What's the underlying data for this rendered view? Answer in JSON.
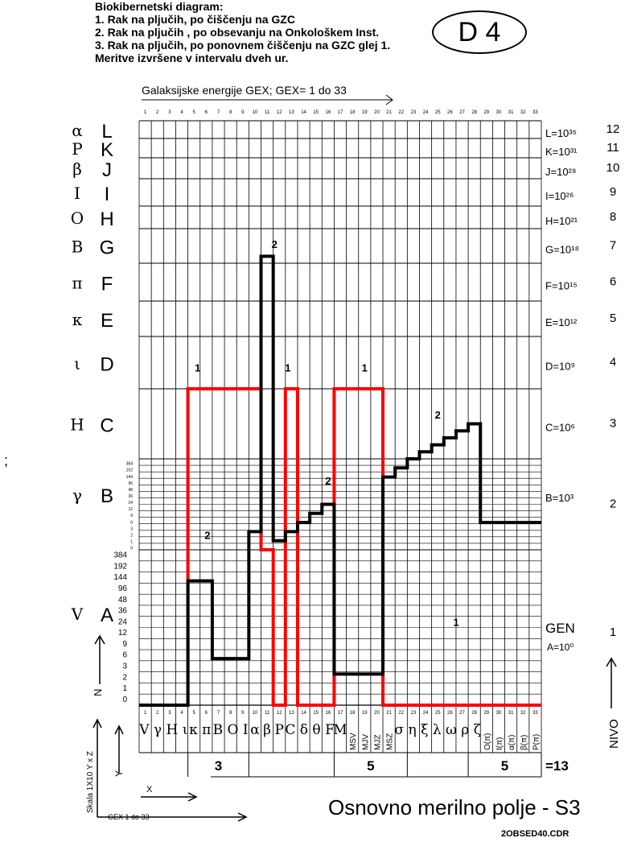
{
  "header": {
    "lines": [
      "Biokibernetski diagram:",
      "1. Rak na pljučih, po čiščenju na GZC",
      "2. Rak na pljučih , po obsevanju na Onkološkem Inst.",
      "3. Rak na pljučih, po ponovnem čiščenju na GZC glej 1.",
      "Meritve izvršene v intervalu dveh ur."
    ],
    "badge": "D 4"
  },
  "chart_data": {
    "type": "line",
    "title": "Galaksijske energije GEX;    GEX= 1 do 33",
    "x_ticks": [
      "1",
      "2",
      "3",
      "4",
      "5",
      "6",
      "7",
      "8",
      "9",
      "10",
      "11",
      "12",
      "13",
      "14",
      "15",
      "16",
      "17",
      "18",
      "19",
      "20",
      "21",
      "22",
      "23",
      "24",
      "25",
      "26",
      "27",
      "28",
      "29",
      "30",
      "31",
      "32",
      "33"
    ],
    "levels": [
      {
        "nivo": 1,
        "letter": "A",
        "greek": "V",
        "exp": "GEN"
      },
      {
        "nivo": 2,
        "letter": "B",
        "greek": "γ",
        "exp": "B=10³"
      },
      {
        "nivo": 3,
        "letter": "C",
        "greek": "H",
        "exp": "C=10⁶"
      },
      {
        "nivo": 4,
        "letter": "D",
        "greek": "ι",
        "exp": "D=10⁹"
      },
      {
        "nivo": 5,
        "letter": "E",
        "greek": "κ",
        "exp": "E=10¹²"
      },
      {
        "nivo": 6,
        "letter": "F",
        "greek": "π",
        "exp": "F=10¹⁵"
      },
      {
        "nivo": 7,
        "letter": "G",
        "greek": "B",
        "exp": "G=10¹⁸"
      },
      {
        "nivo": 8,
        "letter": "H",
        "greek": "O",
        "exp": "H=10²¹"
      },
      {
        "nivo": 9,
        "letter": "I",
        "greek": "I",
        "exp": "I=10²⁶"
      },
      {
        "nivo": 10,
        "letter": "J",
        "greek": "β",
        "exp": "J=10²⁸"
      },
      {
        "nivo": 11,
        "letter": "K",
        "greek": "P",
        "exp": "K=10³¹"
      },
      {
        "nivo": 12,
        "letter": "L",
        "greek": "α",
        "exp": "L=10³⁵"
      }
    ],
    "gen_extra": "A=10⁰",
    "sub_scale": [
      "0",
      "1",
      "2",
      "3",
      "6",
      "9",
      "12",
      "24",
      "36",
      "48",
      "96",
      "144",
      "192",
      "384"
    ],
    "series": [
      {
        "label": "1",
        "color": "#ff0000",
        "levels": [
          1,
          1,
          1,
          1,
          4,
          4,
          4,
          4,
          4,
          4,
          2,
          1,
          4,
          1,
          1,
          1,
          4,
          4,
          4,
          4,
          1,
          1,
          1,
          1,
          1,
          1,
          1,
          1,
          1,
          1,
          1,
          1,
          1
        ]
      },
      {
        "label": "2",
        "color": "#000000",
        "levels": [
          1,
          1,
          1,
          1,
          1.8,
          1.8,
          1.3,
          1.3,
          1.3,
          2.2,
          7.2,
          2.1,
          2.2,
          2.3,
          2.4,
          2.5,
          1.2,
          1.2,
          1.2,
          1.2,
          2.8,
          2.9,
          3.0,
          3.1,
          3.2,
          3.3,
          3.4,
          3.5,
          2.3,
          2.3,
          2.3,
          2.3,
          2.3
        ]
      }
    ],
    "series_labels": [
      {
        "text": "1",
        "x": 4.8,
        "level": 4.3
      },
      {
        "text": "1",
        "x": 12.2,
        "level": 4.3
      },
      {
        "text": "1",
        "x": 18.5,
        "level": 4.3
      },
      {
        "text": "1",
        "x": 26.0,
        "level": 1.5
      },
      {
        "text": "2",
        "x": 5.6,
        "level": 2.1
      },
      {
        "text": "2",
        "x": 11.1,
        "level": 7.4
      },
      {
        "text": "2",
        "x": 15.5,
        "level": 2.7
      },
      {
        "text": "2",
        "x": 24.5,
        "level": 3.55
      }
    ],
    "cat_labels": [
      {
        "from": 1,
        "to": 4,
        "text": "V γ H ι"
      },
      {
        "from": 5,
        "to": 6,
        "text": "κ π"
      },
      {
        "from": 7,
        "to": 9,
        "text": "B O I"
      },
      {
        "from": 10,
        "to": 10,
        "text": "α"
      },
      {
        "from": 11,
        "to": 11,
        "text": "β"
      },
      {
        "from": 12,
        "to": 12,
        "text": "P"
      },
      {
        "from": 13,
        "to": 16,
        "text": "C δ θ F"
      },
      {
        "from": 17,
        "to": 17,
        "text": "M"
      },
      {
        "from": 22,
        "to": 28,
        "text": "σ η ξ λ ω ρ ζ"
      }
    ],
    "cat_vertical": [
      {
        "x": 18,
        "text": "MSV"
      },
      {
        "x": 19,
        "text": "MJV"
      },
      {
        "x": 20,
        "text": "MJZ"
      },
      {
        "x": 21,
        "text": "MSZ"
      },
      {
        "x": 29,
        "text": "O(π)"
      },
      {
        "x": 30,
        "text": "I(π)"
      },
      {
        "x": 31,
        "text": "α(π)"
      },
      {
        "x": 32,
        "text": "β(π)"
      },
      {
        "x": 33,
        "text": "P(π)"
      }
    ],
    "groups": [
      {
        "from": 5,
        "to": 9,
        "value": "3"
      },
      {
        "from": 17,
        "to": 22,
        "value": "5"
      },
      {
        "from": 28,
        "to": 33,
        "value": "5"
      }
    ],
    "total": "=13",
    "nivo_label": "NIVO",
    "axis_labels": {
      "y": "Y",
      "n": "N",
      "x": "X",
      "gex": "GEX 1 do 33",
      "scale": "Skala  1X10 Y x Z",
      "z": "Y"
    }
  },
  "footer": {
    "title": "Osnovno merilno polje - S3",
    "file": "2OBSED40.CDR",
    "semicolon": ";"
  }
}
